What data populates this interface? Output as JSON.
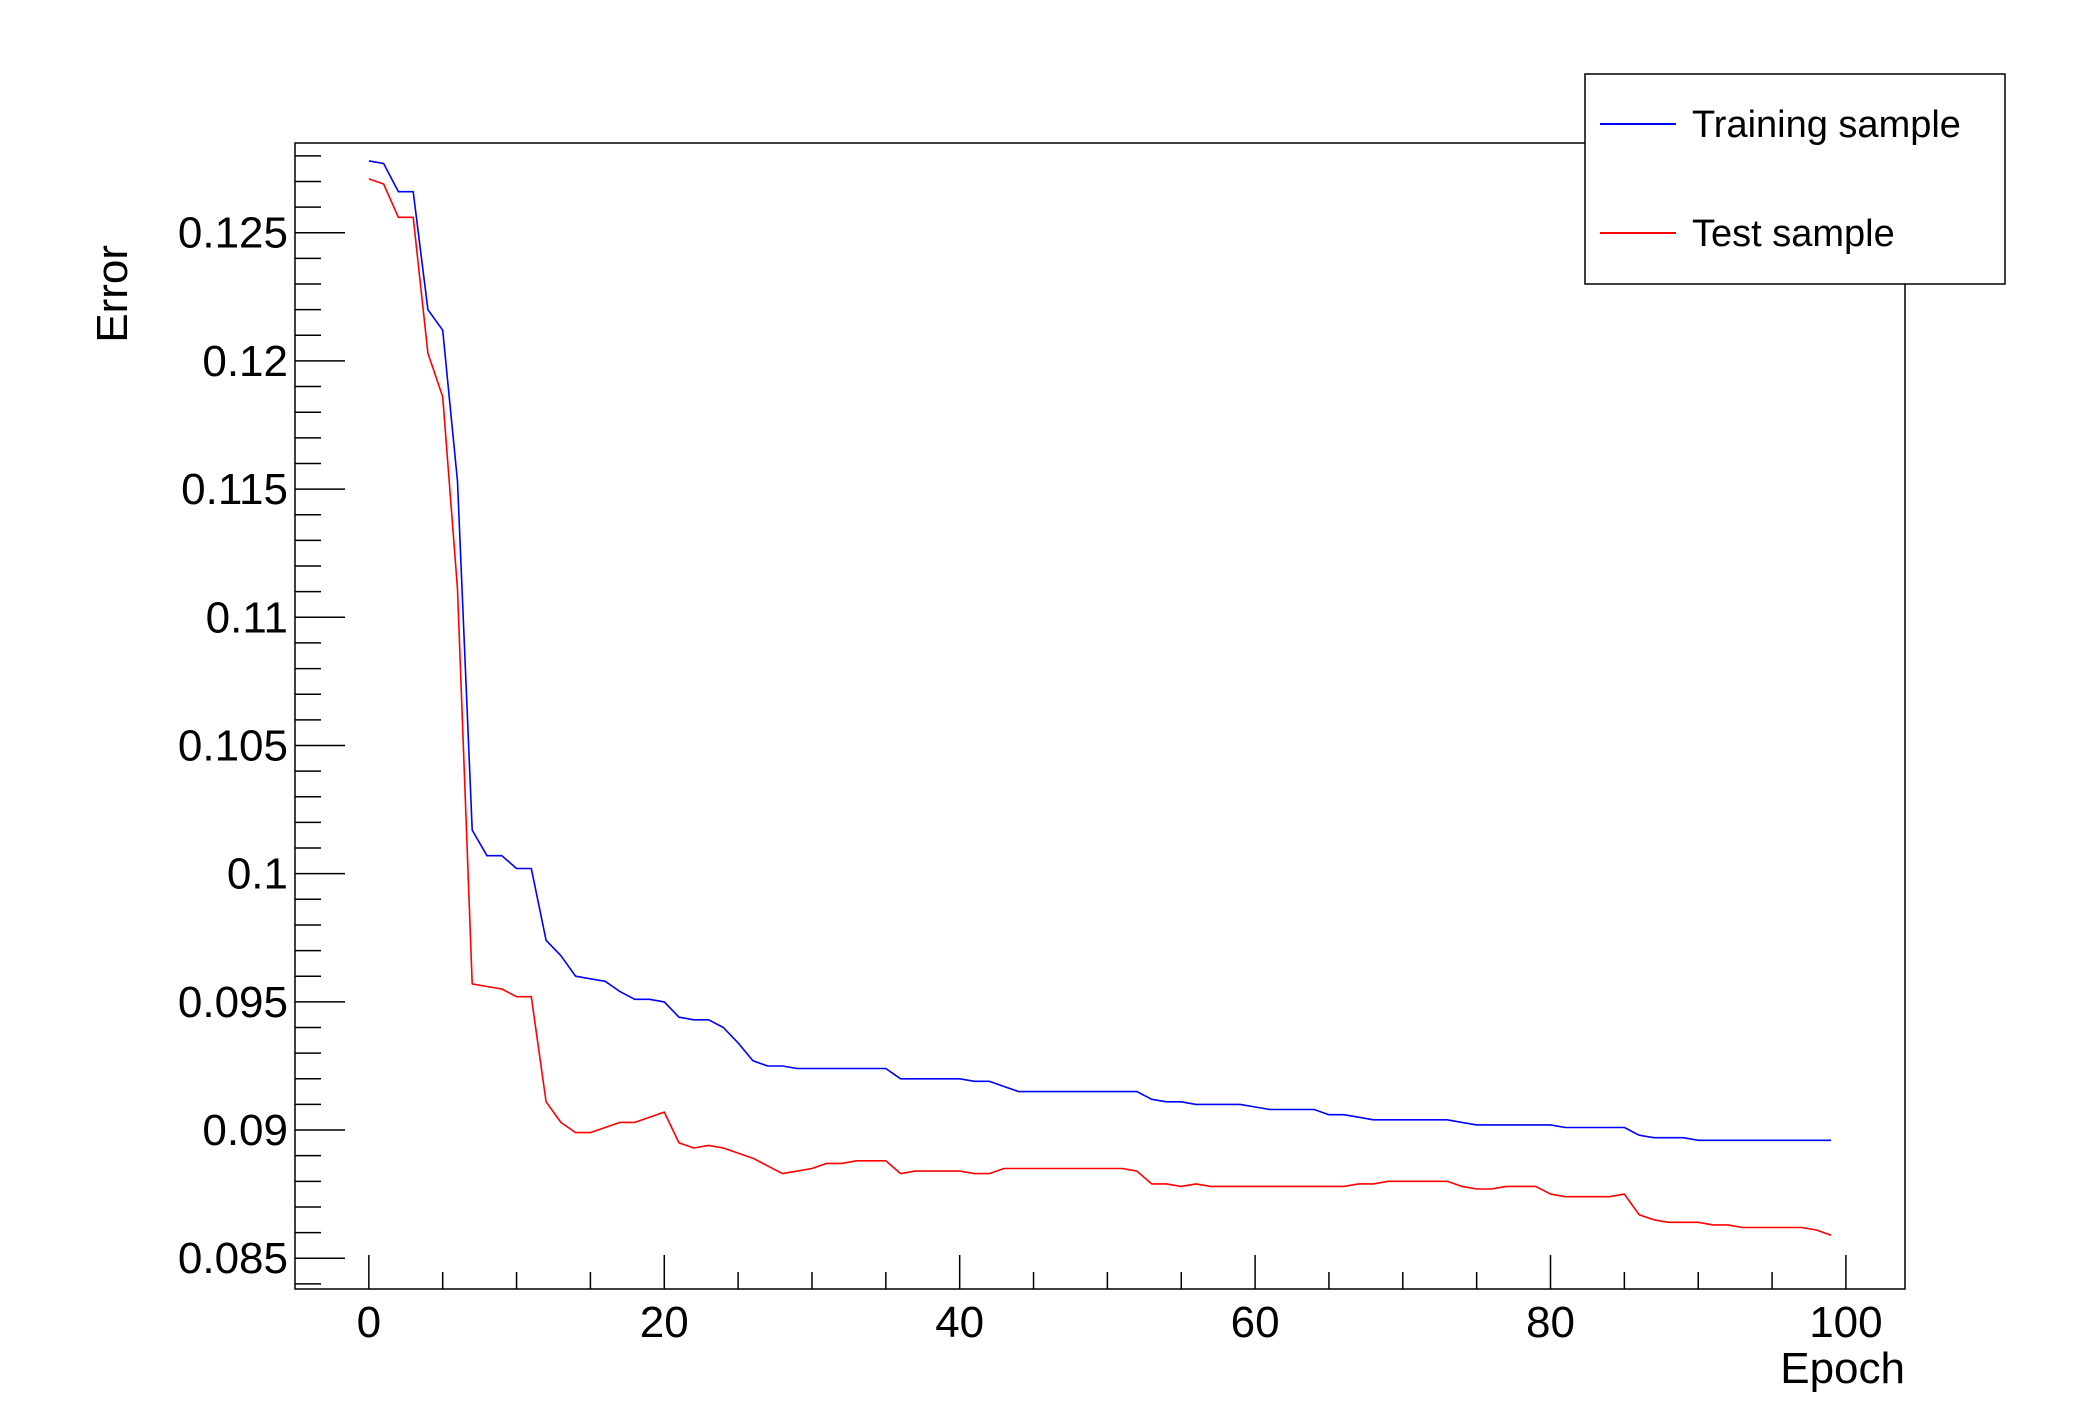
{
  "chart_data": {
    "type": "line",
    "xlabel": "Epoch",
    "ylabel": "Error",
    "xlim": [
      -5,
      104
    ],
    "ylim": [
      0.0838,
      0.1285
    ],
    "x_major_ticks": [
      0,
      20,
      40,
      60,
      80,
      100
    ],
    "x_tick_labels": [
      "0",
      "20",
      "40",
      "60",
      "80",
      "100"
    ],
    "y_major_ticks": [
      0.085,
      0.09,
      0.095,
      0.1,
      0.105,
      0.11,
      0.115,
      0.12,
      0.125
    ],
    "y_tick_labels": [
      "0.085",
      "0.09",
      "0.095",
      "0.1",
      "0.105",
      "0.11",
      "0.115",
      "0.12",
      "0.125"
    ],
    "grid": false,
    "legend_position": "top-right",
    "x": [
      0,
      1,
      2,
      3,
      4,
      5,
      6,
      7,
      8,
      9,
      10,
      11,
      12,
      13,
      14,
      15,
      16,
      17,
      18,
      19,
      20,
      21,
      22,
      23,
      24,
      25,
      26,
      27,
      28,
      29,
      30,
      31,
      32,
      33,
      34,
      35,
      36,
      37,
      38,
      39,
      40,
      41,
      42,
      43,
      44,
      45,
      46,
      47,
      48,
      49,
      50,
      51,
      52,
      53,
      54,
      55,
      56,
      57,
      58,
      59,
      60,
      61,
      62,
      63,
      64,
      65,
      66,
      67,
      68,
      69,
      70,
      71,
      72,
      73,
      74,
      75,
      76,
      77,
      78,
      79,
      80,
      81,
      82,
      83,
      84,
      85,
      86,
      87,
      88,
      89,
      90,
      91,
      92,
      93,
      94,
      95,
      96,
      97,
      98,
      99
    ],
    "series": [
      {
        "name": "Training sample",
        "color": "#0000ff",
        "values": [
          0.1278,
          0.1277,
          0.1266,
          0.1266,
          0.122,
          0.1212,
          0.1153,
          0.1017,
          0.1007,
          0.1007,
          0.1002,
          0.1002,
          0.0974,
          0.0968,
          0.096,
          0.0959,
          0.0958,
          0.0954,
          0.0951,
          0.0951,
          0.095,
          0.0944,
          0.0943,
          0.0943,
          0.094,
          0.0934,
          0.0927,
          0.0925,
          0.0925,
          0.0924,
          0.0924,
          0.0924,
          0.0924,
          0.0924,
          0.0924,
          0.0924,
          0.092,
          0.092,
          0.092,
          0.092,
          0.092,
          0.0919,
          0.0919,
          0.0917,
          0.0915,
          0.0915,
          0.0915,
          0.0915,
          0.0915,
          0.0915,
          0.0915,
          0.0915,
          0.0915,
          0.0912,
          0.0911,
          0.0911,
          0.091,
          0.091,
          0.091,
          0.091,
          0.0909,
          0.0908,
          0.0908,
          0.0908,
          0.0908,
          0.0906,
          0.0906,
          0.0905,
          0.0904,
          0.0904,
          0.0904,
          0.0904,
          0.0904,
          0.0904,
          0.0903,
          0.0902,
          0.0902,
          0.0902,
          0.0902,
          0.0902,
          0.0902,
          0.0901,
          0.0901,
          0.0901,
          0.0901,
          0.0901,
          0.0898,
          0.0897,
          0.0897,
          0.0897,
          0.0896,
          0.0896,
          0.0896,
          0.0896,
          0.0896,
          0.0896,
          0.0896,
          0.0896,
          0.0896,
          0.0896
        ]
      },
      {
        "name": "Test sample",
        "color": "#ff0000",
        "values": [
          0.1271,
          0.1269,
          0.1256,
          0.1256,
          0.1203,
          0.1186,
          0.1111,
          0.0957,
          0.0956,
          0.0955,
          0.0952,
          0.0952,
          0.0911,
          0.0903,
          0.0899,
          0.0899,
          0.0901,
          0.0903,
          0.0903,
          0.0905,
          0.0907,
          0.0895,
          0.0893,
          0.0894,
          0.0893,
          0.0891,
          0.0889,
          0.0886,
          0.0883,
          0.0884,
          0.0885,
          0.0887,
          0.0887,
          0.0888,
          0.0888,
          0.0888,
          0.0883,
          0.0884,
          0.0884,
          0.0884,
          0.0884,
          0.0883,
          0.0883,
          0.0885,
          0.0885,
          0.0885,
          0.0885,
          0.0885,
          0.0885,
          0.0885,
          0.0885,
          0.0885,
          0.0884,
          0.0879,
          0.0879,
          0.0878,
          0.0879,
          0.0878,
          0.0878,
          0.0878,
          0.0878,
          0.0878,
          0.0878,
          0.0878,
          0.0878,
          0.0878,
          0.0878,
          0.0879,
          0.0879,
          0.088,
          0.088,
          0.088,
          0.088,
          0.088,
          0.0878,
          0.0877,
          0.0877,
          0.0878,
          0.0878,
          0.0878,
          0.0875,
          0.0874,
          0.0874,
          0.0874,
          0.0874,
          0.0875,
          0.0867,
          0.0865,
          0.0864,
          0.0864,
          0.0864,
          0.0863,
          0.0863,
          0.0862,
          0.0862,
          0.0862,
          0.0862,
          0.0862,
          0.0861,
          0.0859
        ]
      }
    ]
  }
}
